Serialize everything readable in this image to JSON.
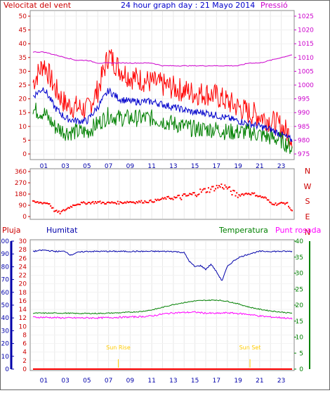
{
  "header": {
    "left_label": "Velocitat del vent",
    "title": "24 hour graph day : 21 Mayo 2014",
    "right_label": "Pressió"
  },
  "colors": {
    "wind_gust": "#ff0000",
    "wind_avg": "#0000cc",
    "wind_min": "#008000",
    "pressure": "#cc00cc",
    "direction": "#ff0000",
    "humidity": "#0000aa",
    "temperature": "#008000",
    "dewpoint": "#ff00ff",
    "rain": "#ff0000",
    "sun": "#ffcc00",
    "axis_left_wind": "#cc0000",
    "axis_right_pressure": "#cc00cc",
    "axis_humidity": "#0000aa",
    "axis_temp": "#008000"
  },
  "x_ticks": [
    "01",
    "03",
    "05",
    "07",
    "09",
    "11",
    "13",
    "15",
    "17",
    "19",
    "21",
    "23"
  ],
  "chart_data": [
    {
      "type": "line",
      "title": "24 hour graph day : 21 Mayo 2014",
      "ylabel": "Velocitat del vent",
      "y2label": "Pressió",
      "ylim": [
        0,
        50
      ],
      "y2lim": [
        975,
        1025
      ],
      "yticks": [
        0,
        5,
        10,
        15,
        20,
        25,
        30,
        35,
        40,
        45,
        50
      ],
      "y2ticks": [
        975,
        980,
        985,
        990,
        995,
        1000,
        1005,
        1010,
        1015,
        1020,
        1025
      ],
      "series": [
        {
          "key": "gust",
          "color": "#ff0000",
          "x": [
            0,
            1,
            2,
            3,
            4,
            5,
            6,
            7,
            8,
            9,
            10,
            11,
            12,
            13,
            14,
            15,
            16,
            17,
            18,
            19,
            20,
            21,
            22,
            23,
            24
          ],
          "values": [
            26,
            33,
            24,
            18,
            17,
            16,
            23,
            36,
            31,
            28,
            27,
            26,
            25,
            24,
            23,
            22,
            22,
            21,
            19,
            17,
            15,
            14,
            12,
            10,
            6
          ]
        },
        {
          "key": "avg",
          "color": "#0000cc",
          "x": [
            0,
            1,
            2,
            3,
            4,
            5,
            6,
            7,
            8,
            9,
            10,
            11,
            12,
            13,
            14,
            15,
            16,
            17,
            18,
            19,
            20,
            21,
            22,
            23,
            24
          ],
          "values": [
            21,
            24,
            17,
            13,
            12,
            12,
            17,
            23,
            20,
            19,
            19,
            19,
            18,
            17,
            16,
            15,
            15,
            14,
            13,
            12,
            11,
            10,
            9,
            7,
            5
          ]
        },
        {
          "key": "min",
          "color": "#008000",
          "x": [
            0,
            1,
            2,
            3,
            4,
            5,
            6,
            7,
            8,
            9,
            10,
            11,
            12,
            13,
            14,
            15,
            16,
            17,
            18,
            19,
            20,
            21,
            22,
            23,
            24
          ],
          "values": [
            16,
            15,
            10,
            8,
            8,
            8,
            11,
            14,
            13,
            13,
            13,
            13,
            12,
            11,
            10,
            9,
            9,
            9,
            8,
            8,
            8,
            7,
            6,
            5,
            2
          ]
        },
        {
          "key": "pressure",
          "color": "#cc00cc",
          "axis": "right",
          "x": [
            0,
            1,
            2,
            3,
            4,
            5,
            6,
            7,
            8,
            9,
            10,
            11,
            12,
            13,
            14,
            15,
            16,
            17,
            18,
            19,
            20,
            21,
            22,
            23,
            24
          ],
          "values": [
            1012,
            1012,
            1011,
            1010,
            1009,
            1009,
            1008,
            1008,
            1008,
            1008,
            1008,
            1008,
            1007,
            1007,
            1007,
            1007,
            1007,
            1007,
            1007,
            1007,
            1008,
            1008,
            1009,
            1010,
            1011
          ]
        }
      ]
    },
    {
      "type": "scatter",
      "ylim": [
        0,
        360
      ],
      "yticks": [
        0,
        90,
        180,
        270,
        360
      ],
      "right_labels": [
        "N",
        "W",
        "S",
        "E",
        "N"
      ],
      "series": [
        {
          "key": "direction",
          "color": "#ff0000",
          "x": [
            0,
            0.5,
            1,
            1.5,
            2,
            2.5,
            3,
            3.5,
            4,
            4.5,
            5,
            5.5,
            6,
            6.5,
            7,
            7.5,
            8,
            8.5,
            9,
            9.5,
            10,
            10.5,
            11,
            11.5,
            12,
            12.5,
            13,
            13.5,
            14,
            14.5,
            15,
            15.5,
            16,
            16.5,
            17,
            17.5,
            18,
            18.5,
            19,
            19.5,
            20,
            20.5,
            21,
            21.5,
            22,
            22.5,
            23,
            23.5,
            24
          ],
          "values": [
            115,
            112,
            110,
            105,
            45,
            30,
            55,
            80,
            100,
            105,
            110,
            112,
            115,
            110,
            108,
            112,
            110,
            115,
            118,
            115,
            118,
            120,
            122,
            130,
            140,
            150,
            145,
            150,
            160,
            170,
            180,
            200,
            210,
            220,
            235,
            245,
            230,
            190,
            170,
            180,
            185,
            180,
            160,
            150,
            110,
            100,
            105,
            110,
            40
          ]
        }
      ]
    },
    {
      "type": "line",
      "ylabel": "Humitat",
      "y2label": "Temperatura",
      "left_extra_label": "Pluja",
      "right_extra_label": "Punt rosada",
      "humidity_lim": [
        0,
        100
      ],
      "humidity_ticks": [
        0,
        10,
        20,
        30,
        40,
        50,
        60,
        70,
        80,
        90,
        100
      ],
      "temp_lim": [
        0,
        40
      ],
      "temp_ticks": [
        0,
        5,
        10,
        15,
        20,
        25,
        30,
        35,
        40
      ],
      "rain_lim": [
        0,
        30
      ],
      "rain_ticks": [
        0,
        2,
        4,
        6,
        8,
        10,
        12,
        14,
        16,
        18,
        20,
        22,
        24,
        26,
        28,
        30
      ],
      "annotations": [
        "Sun Rise",
        "Sun Set"
      ],
      "sun_rise_x": 7.9,
      "sun_set_x": 20.1,
      "series": [
        {
          "key": "humidity",
          "color": "#0000aa",
          "axis": "humidity",
          "x": [
            0,
            1,
            2,
            3,
            3.5,
            4,
            5,
            6,
            7,
            8,
            9,
            10,
            11,
            12,
            13,
            14,
            14.5,
            15,
            15.5,
            16,
            16.5,
            17,
            17.5,
            18,
            18.5,
            19,
            20,
            21,
            22,
            23,
            24
          ],
          "values": [
            92,
            93,
            92,
            92,
            89,
            91,
            92,
            92,
            92,
            92,
            92,
            92,
            92,
            92,
            92,
            91,
            84,
            80,
            81,
            78,
            82,
            76,
            69,
            80,
            84,
            87,
            90,
            92,
            92,
            92,
            92
          ]
        },
        {
          "key": "temperature",
          "color": "#008000",
          "axis": "temp",
          "x": [
            0,
            1,
            2,
            3,
            4,
            5,
            6,
            7,
            8,
            9,
            10,
            11,
            12,
            13,
            14,
            15,
            16,
            17,
            18,
            19,
            20,
            21,
            22,
            23,
            24
          ],
          "values": [
            17.5,
            17.5,
            17.5,
            17.5,
            17.4,
            17.4,
            17.4,
            17.5,
            17.6,
            17.8,
            18.0,
            18.5,
            19.3,
            20.2,
            20.8,
            21.3,
            21.5,
            21.6,
            21.2,
            20.4,
            19.4,
            18.7,
            18.2,
            17.8,
            17.5
          ]
        },
        {
          "key": "dewpoint",
          "color": "#ff00ff",
          "axis": "temp",
          "x": [
            0,
            1,
            2,
            3,
            4,
            5,
            6,
            7,
            8,
            9,
            10,
            11,
            12,
            13,
            14,
            15,
            16,
            17,
            18,
            19,
            20,
            21,
            22,
            23,
            24
          ],
          "values": [
            16.2,
            16.2,
            16.1,
            16.0,
            16.0,
            16.0,
            16.0,
            16.1,
            16.2,
            16.3,
            16.4,
            16.6,
            17.2,
            17.6,
            17.7,
            17.8,
            17.5,
            17.4,
            17.6,
            17.4,
            17.1,
            16.6,
            16.3,
            16.1,
            15.7
          ]
        },
        {
          "key": "rain",
          "color": "#ff0000",
          "axis": "rain",
          "x": [
            0,
            24
          ],
          "values": [
            0,
            0
          ]
        }
      ]
    }
  ]
}
